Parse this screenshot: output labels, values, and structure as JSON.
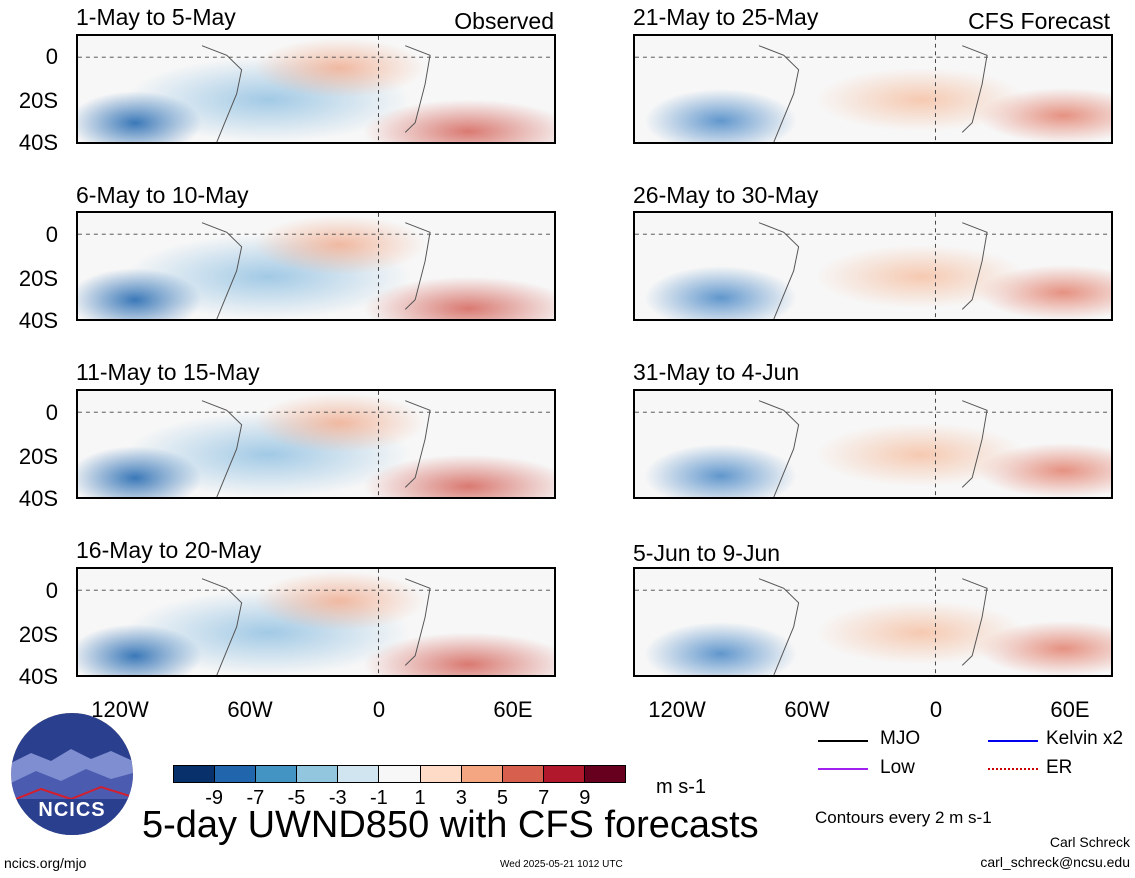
{
  "figure": {
    "title": "5-day UWND850 with CFS forecasts",
    "observed_label": "Observed",
    "forecast_label": "CFS Forecast",
    "units": "m s-1",
    "contour_note": "Contours every 2 m s-1",
    "author": "Carl Schreck",
    "email": "carl_schreck@ncsu.edu",
    "website": "ncics.org/mjo",
    "timestamp": "Wed 2025-05-21 1012 UTC",
    "logo_text": "NCICS"
  },
  "panels_left": [
    {
      "title": "1-May to 5-May"
    },
    {
      "title": "6-May to 10-May"
    },
    {
      "title": "11-May to 15-May"
    },
    {
      "title": "16-May to 20-May"
    }
  ],
  "panels_right": [
    {
      "title": "21-May to 25-May"
    },
    {
      "title": "26-May to 30-May"
    },
    {
      "title": "31-May to 4-Jun"
    },
    {
      "title": "5-Jun to 9-Jun"
    }
  ],
  "axes": {
    "y_ticks": [
      "0",
      "20S",
      "40S"
    ],
    "x_ticks": [
      "120W",
      "60W",
      "0",
      "60E"
    ]
  },
  "colorbar": {
    "tick_labels": [
      "-9",
      "-7",
      "-5",
      "-3",
      "-1",
      "1",
      "3",
      "5",
      "7",
      "9"
    ],
    "colors": [
      "#08306b",
      "#2166ac",
      "#4393c3",
      "#92c5de",
      "#d1e5f0",
      "#f7f7f7",
      "#fddbc7",
      "#f4a582",
      "#d6604d",
      "#b2182b",
      "#67001f"
    ]
  },
  "legend": [
    {
      "label": "MJO",
      "color": "#000000",
      "style": "solid"
    },
    {
      "label": "Kelvin x2",
      "color": "#0000ee",
      "style": "solid"
    },
    {
      "label": "Low",
      "color": "#a020f0",
      "style": "solid"
    },
    {
      "label": "ER",
      "color": "#cc0000",
      "style": "dotted"
    }
  ]
}
